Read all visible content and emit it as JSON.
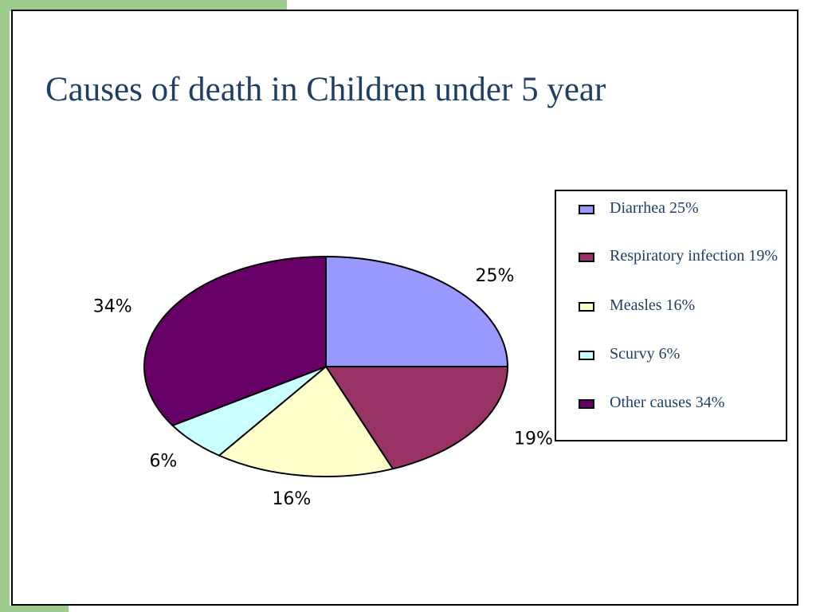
{
  "slide": {
    "title": "Causes of death in Children under 5 year"
  },
  "chart_data": {
    "type": "pie",
    "title": "",
    "slices": [
      {
        "label": "Diarrhea 25%",
        "value": 25,
        "percent_label": "25%",
        "color": "#9999ff"
      },
      {
        "label": "Respiratory infection 19%",
        "value": 19,
        "percent_label": "19%",
        "color": "#993366"
      },
      {
        "label": "Measles 16%",
        "value": 16,
        "percent_label": "16%",
        "color": "#ffffcc"
      },
      {
        "label": "Scurvy 6%",
        "value": 6,
        "percent_label": "6%",
        "color": "#ccffff"
      },
      {
        "label": "Other causes 34%",
        "value": 34,
        "percent_label": "34%",
        "color": "#660066"
      }
    ],
    "legend_position": "right"
  }
}
